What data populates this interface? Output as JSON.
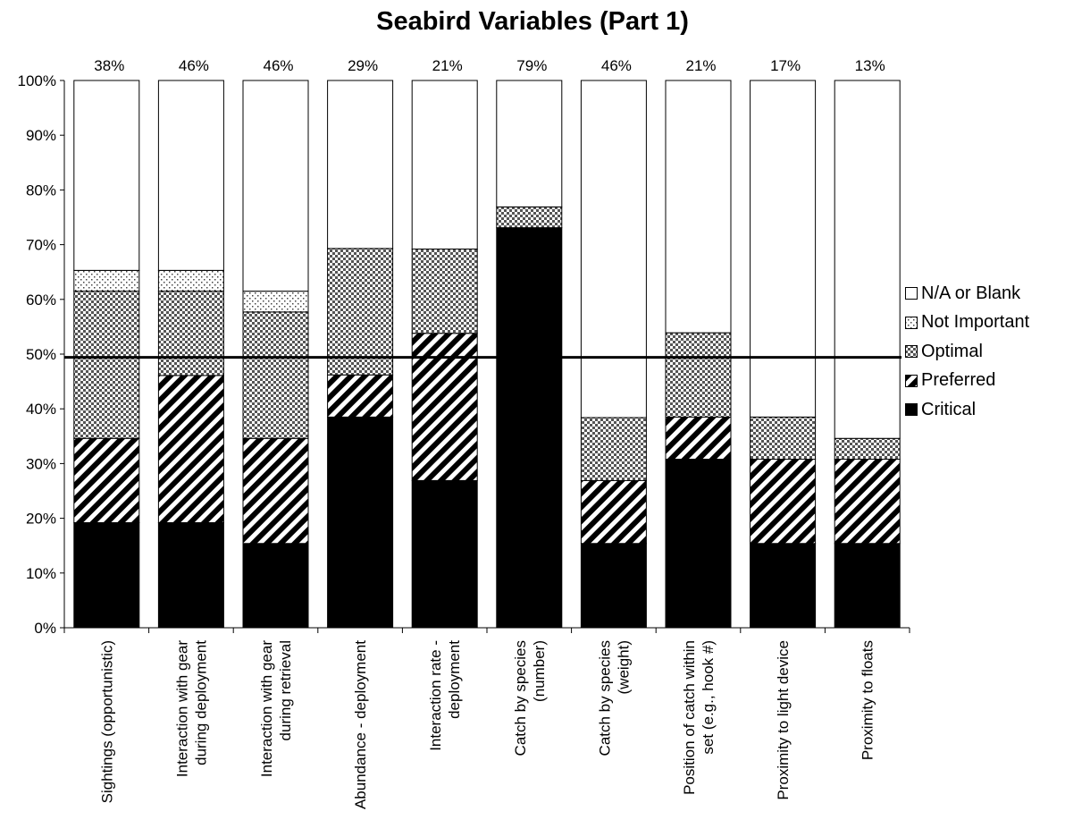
{
  "chart_data": {
    "type": "bar",
    "stacked": true,
    "title": "Seabird Variables (Part 1)",
    "xlabel": "",
    "ylabel": "",
    "ylim": [
      0,
      100
    ],
    "y_ticks": [
      "0%",
      "10%",
      "20%",
      "30%",
      "40%",
      "50%",
      "60%",
      "70%",
      "80%",
      "90%",
      "100%"
    ],
    "reference_line_y": 49.4,
    "legend_position": "right",
    "grid": false,
    "categories": [
      "Sightings (opportunistic)",
      "Interaction with gear during deployment",
      "Interaction with gear during retrieval",
      "Abundance - deployment",
      "Interaction rate - deployment",
      "Catch by species (number)",
      "Catch by species (weight)",
      "Position of catch within set (e.g., hook #)",
      "Proximity to light device",
      "Proximity to floats"
    ],
    "category_lines": [
      [
        "Sightings (opportunistic)"
      ],
      [
        "Interaction with gear",
        "during deployment"
      ],
      [
        "Interaction with gear",
        "during retrieval"
      ],
      [
        "Abundance - deployment"
      ],
      [
        "Interaction rate -",
        "deployment"
      ],
      [
        "Catch by species",
        "(number)"
      ],
      [
        "Catch by species",
        "(weight)"
      ],
      [
        "Position of catch within",
        "set (e.g., hook #)"
      ],
      [
        "Proximity to light device"
      ],
      [
        "Proximity to floats"
      ]
    ],
    "top_labels": [
      "38%",
      "46%",
      "46%",
      "29%",
      "21%",
      "79%",
      "46%",
      "21%",
      "17%",
      "13%"
    ],
    "series": [
      {
        "name": "Critical",
        "pattern": "solid",
        "values": [
          19.2,
          19.2,
          15.4,
          38.5,
          26.9,
          73.1,
          15.4,
          30.8,
          15.4,
          15.4
        ]
      },
      {
        "name": "Preferred",
        "pattern": "diagonal",
        "values": [
          15.4,
          26.9,
          19.2,
          7.7,
          26.9,
          0,
          11.5,
          7.7,
          15.4,
          15.4
        ]
      },
      {
        "name": "Optimal",
        "pattern": "dense-dots",
        "values": [
          26.9,
          15.4,
          23.1,
          23.1,
          15.4,
          3.8,
          11.5,
          15.4,
          7.7,
          3.8
        ]
      },
      {
        "name": "Not Important",
        "pattern": "sparse-dots",
        "values": [
          3.8,
          3.8,
          3.8,
          0,
          0,
          0,
          0,
          0,
          0,
          0
        ]
      },
      {
        "name": "N/A or Blank",
        "pattern": "blank",
        "values": [
          34.7,
          34.7,
          38.5,
          30.7,
          30.8,
          23.1,
          61.6,
          46.1,
          61.5,
          65.4
        ]
      }
    ],
    "legend_order": [
      "N/A or Blank",
      "Not Important",
      "Optimal",
      "Preferred",
      "Critical"
    ]
  }
}
